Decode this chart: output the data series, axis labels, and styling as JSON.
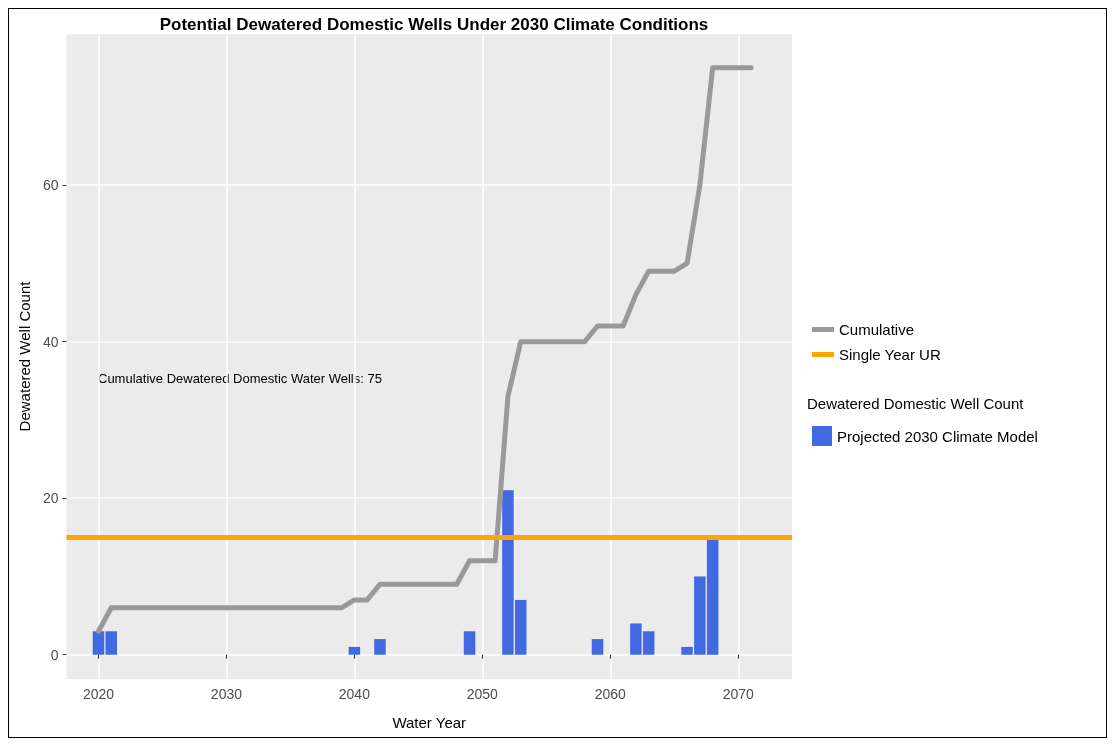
{
  "chart_data": {
    "type": "bar",
    "title": "Potential Dewatered Domestic Wells Under 2030 Climate Conditions",
    "xlabel": "Water Year",
    "ylabel": "Dewatered Well Count",
    "legend_title": "Dewatered Domestic Well Count",
    "x": [
      2020,
      2021,
      2040,
      2042,
      2049,
      2052,
      2053,
      2059,
      2062,
      2063,
      2066,
      2067,
      2068
    ],
    "series": [
      {
        "name": "Projected 2030 Climate Model",
        "color": "#4169e1",
        "values": [
          3,
          3,
          1,
          2,
          3,
          21,
          7,
          2,
          4,
          3,
          1,
          10,
          15
        ]
      },
      {
        "name": "Cumulative",
        "type": "line",
        "color": "#999999",
        "x": [
          2020,
          2021,
          2039,
          2040,
          2041,
          2042,
          2048,
          2049,
          2051,
          2052,
          2053,
          2058,
          2059,
          2061,
          2062,
          2063,
          2065,
          2066,
          2067,
          2068,
          2071
        ],
        "values": [
          3,
          6,
          6,
          7,
          7,
          9,
          9,
          12,
          12,
          33,
          40,
          40,
          42,
          42,
          46,
          49,
          49,
          50,
          60,
          75,
          75
        ]
      }
    ],
    "ref_lines": [
      {
        "axis": "y",
        "value": 15,
        "label": "Single Year UR",
        "color": "#ffa500"
      }
    ],
    "annotations": [
      "Cumulative Dewatered Domestic Water Wells: 75"
    ],
    "xlim": [
      2017.5,
      2074.2
    ],
    "xticks": [
      2020,
      2030,
      2040,
      2050,
      2060,
      2070
    ],
    "ylim": [
      -3.1,
      79.3
    ],
    "yticks": [
      0,
      20,
      40,
      60
    ],
    "grid": true,
    "legend": "right",
    "marker": "none",
    "line_style": "solid"
  }
}
